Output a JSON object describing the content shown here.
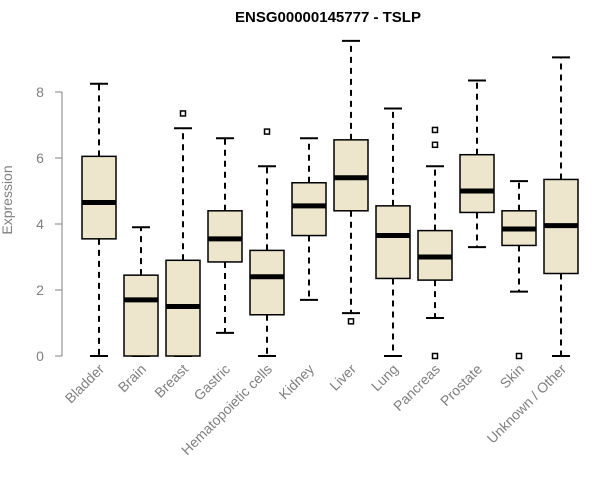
{
  "chart_data": {
    "type": "boxplot",
    "title": "ENSG00000145777 - TSLP",
    "xlabel": "",
    "ylabel": "Expression",
    "ylim": [
      0,
      9.6
    ],
    "yticks": [
      0,
      2,
      4,
      6,
      8
    ],
    "categories": [
      "Bladder",
      "Brain",
      "Breast",
      "Gastric",
      "Hematopoietic cells",
      "Kidney",
      "Liver",
      "Lung",
      "Pancreas",
      "Prostate",
      "Skin",
      "Unknown / Other"
    ],
    "boxes": [
      {
        "name": "Bladder",
        "min": 0.0,
        "q1": 3.55,
        "median": 4.65,
        "q3": 6.05,
        "max": 8.25,
        "outliers": []
      },
      {
        "name": "Brain",
        "min": 0.0,
        "q1": 0.0,
        "median": 1.7,
        "q3": 2.45,
        "max": 3.9,
        "outliers": []
      },
      {
        "name": "Breast",
        "min": 0.0,
        "q1": 0.0,
        "median": 1.5,
        "q3": 2.9,
        "max": 6.9,
        "outliers": [
          7.35
        ]
      },
      {
        "name": "Gastric",
        "min": 0.7,
        "q1": 2.85,
        "median": 3.55,
        "q3": 4.4,
        "max": 6.6,
        "outliers": []
      },
      {
        "name": "Hematopoietic cells",
        "min": 0.0,
        "q1": 1.25,
        "median": 2.4,
        "q3": 3.2,
        "max": 5.75,
        "outliers": [
          6.8
        ]
      },
      {
        "name": "Kidney",
        "min": 1.7,
        "q1": 3.65,
        "median": 4.55,
        "q3": 5.25,
        "max": 6.6,
        "outliers": []
      },
      {
        "name": "Liver",
        "min": 1.3,
        "q1": 4.4,
        "median": 5.4,
        "q3": 6.55,
        "max": 9.55,
        "outliers": [
          1.05
        ]
      },
      {
        "name": "Lung",
        "min": 0.0,
        "q1": 2.35,
        "median": 3.65,
        "q3": 4.55,
        "max": 7.5,
        "outliers": []
      },
      {
        "name": "Pancreas",
        "min": 1.15,
        "q1": 2.3,
        "median": 3.0,
        "q3": 3.8,
        "max": 5.75,
        "outliers": [
          0.0,
          6.4,
          6.85
        ]
      },
      {
        "name": "Prostate",
        "min": 3.3,
        "q1": 4.35,
        "median": 5.0,
        "q3": 6.1,
        "max": 8.35,
        "outliers": []
      },
      {
        "name": "Skin",
        "min": 1.95,
        "q1": 3.35,
        "median": 3.85,
        "q3": 4.4,
        "max": 5.3,
        "outliers": [
          0.0
        ]
      },
      {
        "name": "Unknown / Other",
        "min": 0.0,
        "q1": 2.5,
        "median": 3.95,
        "q3": 5.35,
        "max": 9.05,
        "outliers": []
      }
    ],
    "colors": {
      "box_fill": "#ede5cc",
      "line": "#000000",
      "axis_text": "#808080"
    }
  }
}
